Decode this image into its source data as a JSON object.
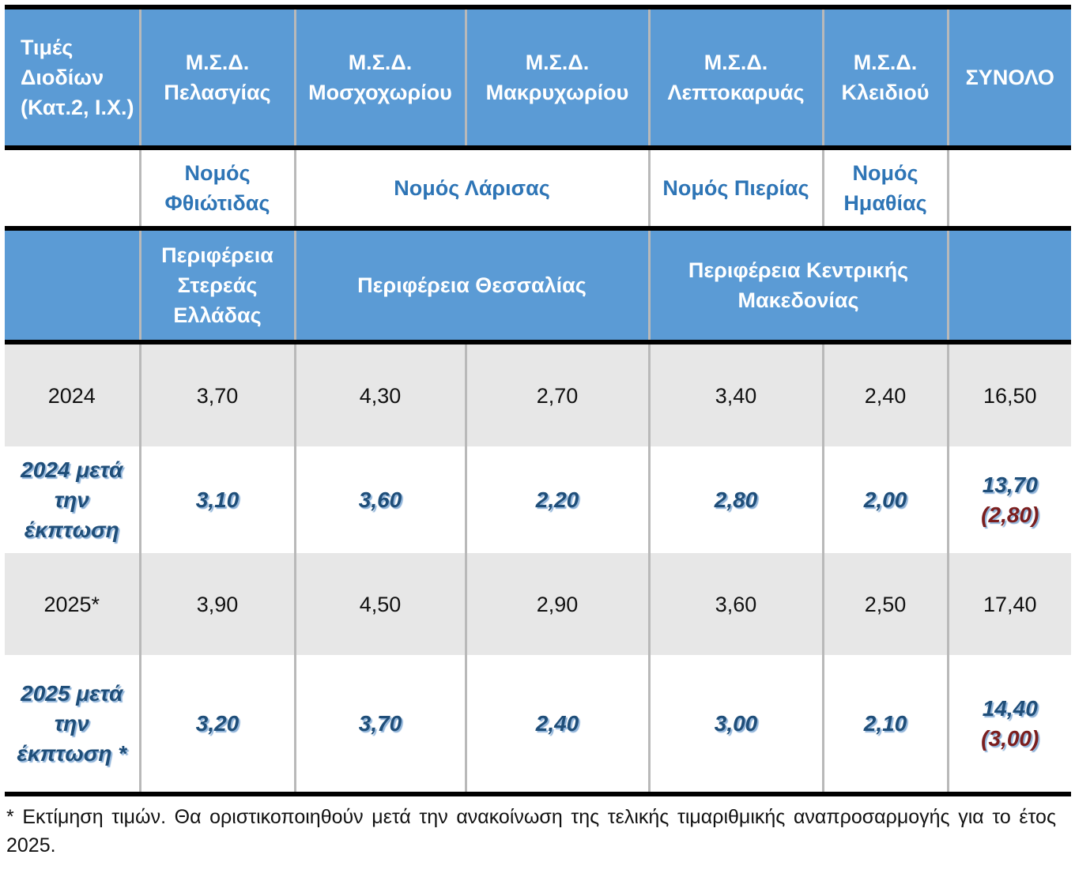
{
  "header": {
    "corner": "Τιμές Διοδίων (Κατ.2, Ι.Χ.)",
    "stations": [
      "Μ.Σ.Δ. Πελασγίας",
      "Μ.Σ.Δ. Μοσχοχωρίου",
      "Μ.Σ.Δ. Μακρυχωρίου",
      "Μ.Σ.Δ. Λεπτοκαρυάς",
      "Μ.Σ.Δ. Κλειδιού"
    ],
    "total": "ΣΥΝΟΛΟ"
  },
  "prefectures": {
    "fthiotida": "Νομός Φθιώτιδας",
    "larisa": "Νομός Λάρισας",
    "pieria": "Νομός Πιερίας",
    "imathia": "Νομός Ημαθίας"
  },
  "regions": {
    "sterea": "Περιφέρεια Στερεάς Ελλάδας",
    "thessalia": "Περιφέρεια Θεσσαλίας",
    "makedonia": "Περιφέρεια Κεντρικής Μακεδονίας"
  },
  "rows": [
    {
      "label": "2024",
      "values": [
        "3,70",
        "4,30",
        "2,70",
        "3,40",
        "2,40"
      ],
      "total": "16,50"
    },
    {
      "label": "2024 μετά την έκπτωση",
      "values": [
        "3,10",
        "3,60",
        "2,20",
        "2,80",
        "2,00"
      ],
      "total": "13,70",
      "saving": "(2,80)"
    },
    {
      "label": "2025*",
      "values": [
        "3,90",
        "4,50",
        "2,90",
        "3,60",
        "2,50"
      ],
      "total": "17,40"
    },
    {
      "label": "2025 μετά την έκπτωση *",
      "values": [
        "3,20",
        "3,70",
        "2,40",
        "3,00",
        "2,10"
      ],
      "total": "14,40",
      "saving": "(3,00)"
    }
  ],
  "footnote": "* Εκτίμηση τιμών. Θα οριστικοποιηθούν μετά την ανακοίνωση της τελικής τιμαριθμικής αναπροσαρμογής για το έτος 2025.",
  "colors": {
    "header_bg": "#5b9bd5",
    "prefecture_text": "#2e75b6",
    "discount_text": "#1f4e79",
    "saving_text": "#7b1e1e",
    "row_bg": "#e7e7e7"
  }
}
